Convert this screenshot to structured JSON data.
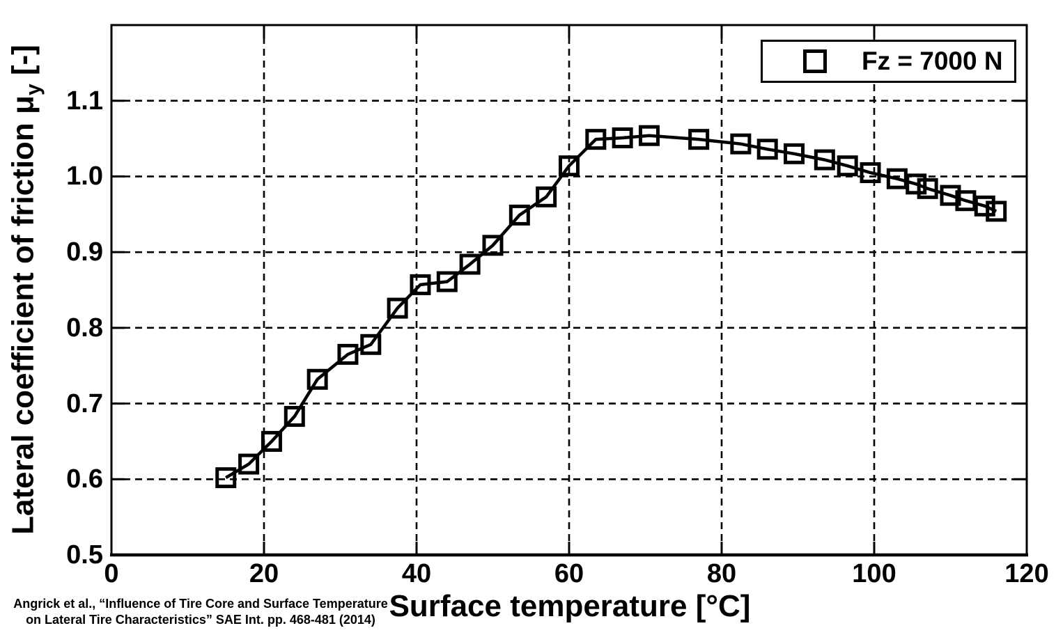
{
  "page": {
    "background_color": "#ffffff",
    "foreground_color": "#000000",
    "citation": {
      "line1": "Angrick et al., “Influence of Tire Core and Surface Temperature",
      "line2": "on Lateral Tire Characteristics” SAE Int. pp. 468-481 (2014)"
    }
  },
  "chart_data": {
    "type": "scatter",
    "title": "",
    "xlabel": "Surface temperature [°C]",
    "ylabel": "Lateral coefficient of friction μy [-]",
    "ylabel_parts": {
      "main": "Lateral coefficient of friction μ",
      "sub": "y",
      "suffix": " [-]"
    },
    "xlim": [
      0,
      120
    ],
    "ylim": [
      0.5,
      1.2
    ],
    "x_ticks": [
      0,
      20,
      40,
      60,
      80,
      100,
      120
    ],
    "y_ticks": [
      0.5,
      0.6,
      0.7,
      0.8,
      0.9,
      1.0,
      1.1
    ],
    "y_tick_labels": [
      "0.5",
      "0.6",
      "0.7",
      "0.8",
      "0.9",
      "1.0",
      "1.1"
    ],
    "grid": true,
    "grid_style": "dashed",
    "legend": {
      "position": "top-right-inside",
      "entries": [
        {
          "label": "Fz = 7000 N",
          "marker": "open-square"
        }
      ]
    },
    "series": [
      {
        "name": "Fz = 7000 N",
        "marker": "open-square",
        "line": "solid",
        "color": "#000000",
        "x": [
          15,
          18,
          21,
          24,
          27,
          31,
          34,
          37.5,
          40.5,
          44,
          47,
          50,
          53.5,
          57,
          60,
          63.5,
          67,
          70.5,
          77,
          82.5,
          86,
          89.5,
          93.5,
          96.5,
          99.5,
          103,
          105.5,
          107,
          110,
          112,
          114.5,
          116
        ],
        "y": [
          0.602,
          0.62,
          0.65,
          0.683,
          0.732,
          0.765,
          0.778,
          0.826,
          0.857,
          0.861,
          0.884,
          0.909,
          0.949,
          0.973,
          1.014,
          1.049,
          1.051,
          1.054,
          1.049,
          1.043,
          1.036,
          1.03,
          1.022,
          1.014,
          1.005,
          0.997,
          0.99,
          0.984,
          0.975,
          0.968,
          0.961,
          0.954
        ]
      }
    ]
  }
}
